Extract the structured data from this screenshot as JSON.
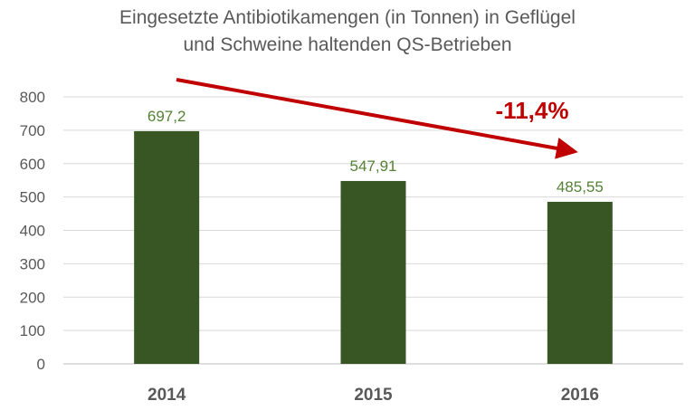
{
  "chart_data": {
    "type": "bar",
    "title": [
      "Eingesetzte Antibiotikamengen (in Tonnen) in Geflügel",
      "und Schweine haltenden QS-Betrieben"
    ],
    "categories": [
      "2014",
      "2015",
      "2016"
    ],
    "values": [
      697.2,
      547.91,
      485.55
    ],
    "data_labels": [
      "697,2",
      "547,91",
      "485,55"
    ],
    "yticks": [
      "0",
      "100",
      "200",
      "300",
      "400",
      "500",
      "600",
      "700",
      "800"
    ],
    "ylim": [
      0,
      800
    ],
    "grid": true,
    "annotation": "-11,4%",
    "bar_color": "#375623",
    "label_color": "#548235",
    "arrow_color": "#c00000",
    "axis_text_color": "#595959"
  }
}
